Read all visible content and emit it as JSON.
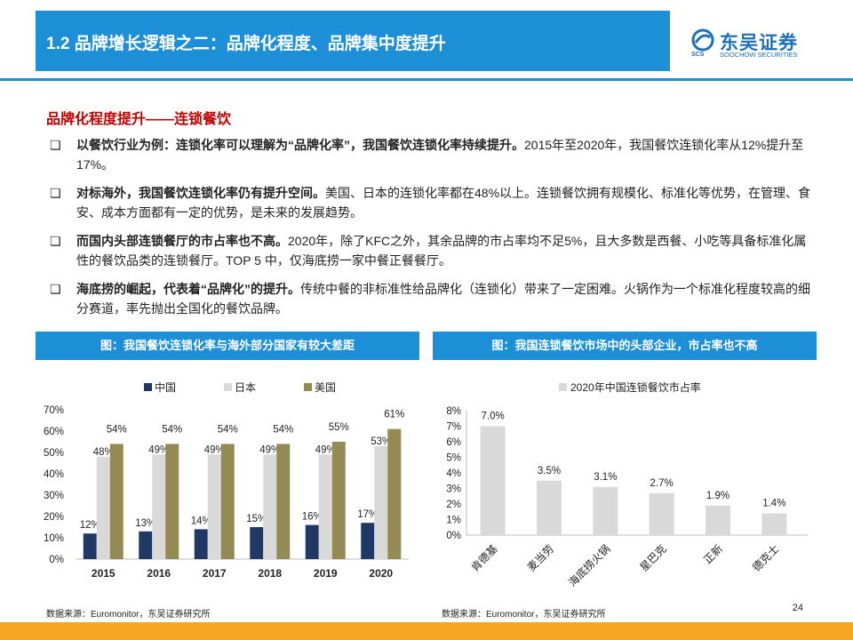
{
  "header": {
    "title": "1.2 品牌增长逻辑之二：品牌化程度、品牌集中度提升",
    "logo_cn": "东吴证券",
    "logo_en": "SOOCHOW SECURITIES",
    "logo_mark_text": "SCS"
  },
  "section_title": "品牌化程度提升——连锁餐饮",
  "bullets": [
    {
      "mark": "❑",
      "bold": "以餐饮行业为例：连锁化率可以理解为“品牌化率”，我国餐饮连锁化率持续提升。",
      "text": "2015年至2020年，我国餐饮连锁化率从12%提升至17%。"
    },
    {
      "mark": "❑",
      "bold": "对标海外，我国餐饮连锁化率仍有提升空间。",
      "text": "美国、日本的连锁化率都在48%以上。连锁餐饮拥有规模化、标准化等优势，在管理、食安、成本方面都有一定的优势，是未来的发展趋势。"
    },
    {
      "mark": "❑",
      "bold": "而国内头部连锁餐厅的市占率也不高。",
      "text": "2020年，除了KFC之外，其余品牌的市占率均不足5%，且大多数是西餐、小吃等具备标准化属性的餐饮品类的连锁餐厅。TOP 5 中，仅海底捞一家中餐正餐餐厅。"
    },
    {
      "mark": "❑",
      "bold": "海底捞的崛起，代表着“品牌化”的提升。",
      "text": "传统中餐的非标准性给品牌化（连锁化）带来了一定困难。火锅作为一个标准化程度较高的细分赛道，率先抛出全国化的餐饮品牌。"
    }
  ],
  "left_panel": {
    "heading": "图：我国餐饮连锁化率与海外部分国家有较大差距",
    "source": "数据来源：Euromonitor，东吴证券研究所"
  },
  "right_panel": {
    "heading": "图：我国连锁餐饮市场中的头部企业，市占率也不高",
    "source": "数据来源：Euromonitor，东吴证券研究所"
  },
  "page_number": "24",
  "colors": {
    "brand_blue": "#1c8fd6",
    "china": "#1f3864",
    "japan": "#d9d9d9",
    "usa": "#948a54",
    "gray_bar": "#d9d9d9",
    "accent_red": "#c00000",
    "footer": "#f5a623"
  },
  "chart_data": [
    {
      "type": "bar",
      "categories": [
        "2015",
        "2016",
        "2017",
        "2018",
        "2019",
        "2020"
      ],
      "series": [
        {
          "name": "中国",
          "values": [
            12,
            13,
            14,
            15,
            16,
            17
          ]
        },
        {
          "name": "日本",
          "values": [
            48,
            49,
            49,
            49,
            49,
            53
          ]
        },
        {
          "name": "美国",
          "values": [
            54,
            54,
            54,
            54,
            55,
            61
          ]
        }
      ],
      "ylim": [
        0,
        70
      ],
      "yticks": [
        "0%",
        "10%",
        "20%",
        "30%",
        "40%",
        "50%",
        "60%",
        "70%"
      ],
      "value_suffix": "%",
      "legend": "top"
    },
    {
      "type": "bar",
      "categories": [
        "肯德基",
        "麦当劳",
        "海底捞火锅",
        "星巴克",
        "正新",
        "德克士"
      ],
      "series": [
        {
          "name": "2020年中国连锁餐饮市占率",
          "values": [
            7.0,
            3.5,
            3.1,
            2.7,
            1.9,
            1.4
          ]
        }
      ],
      "ylim": [
        0,
        8
      ],
      "yticks": [
        "0%",
        "1%",
        "2%",
        "3%",
        "4%",
        "5%",
        "6%",
        "7%",
        "8%"
      ],
      "value_suffix": "%",
      "legend": "top"
    }
  ]
}
